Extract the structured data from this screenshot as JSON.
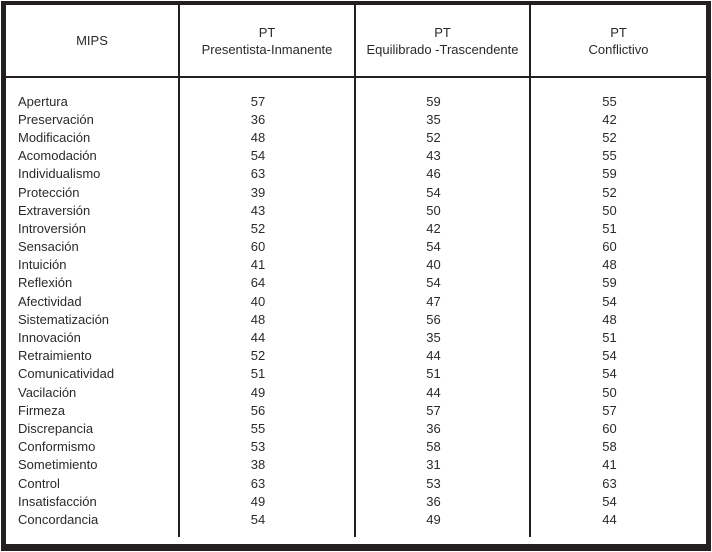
{
  "colors": {
    "border": "#231f20",
    "text": "#2a2a2a",
    "background": "#ffffff"
  },
  "table": {
    "columns": [
      {
        "title": "MIPS",
        "subtitle": ""
      },
      {
        "title": "PT",
        "subtitle": "Presentista-Inmanente"
      },
      {
        "title": "PT",
        "subtitle": "Equilibrado -Trascendente"
      },
      {
        "title": "PT",
        "subtitle": "Conflictivo"
      }
    ],
    "rows": [
      {
        "label": "Apertura",
        "values": [
          57,
          59,
          55
        ]
      },
      {
        "label": "Preservación",
        "values": [
          36,
          35,
          42
        ]
      },
      {
        "label": "Modificación",
        "values": [
          48,
          52,
          52
        ]
      },
      {
        "label": "Acomodación",
        "values": [
          54,
          43,
          55
        ]
      },
      {
        "label": "Individualismo",
        "values": [
          63,
          46,
          59
        ]
      },
      {
        "label": "Protección",
        "values": [
          39,
          54,
          52
        ]
      },
      {
        "label": "Extraversión",
        "values": [
          43,
          50,
          50
        ]
      },
      {
        "label": "Introversión",
        "values": [
          52,
          42,
          51
        ]
      },
      {
        "label": "Sensación",
        "values": [
          60,
          54,
          60
        ]
      },
      {
        "label": "Intuición",
        "values": [
          41,
          40,
          48
        ]
      },
      {
        "label": "Reflexión",
        "values": [
          64,
          54,
          59
        ]
      },
      {
        "label": "Afectividad",
        "values": [
          40,
          47,
          54
        ]
      },
      {
        "label": "Sistematización",
        "values": [
          48,
          56,
          48
        ]
      },
      {
        "label": "Innovación",
        "values": [
          44,
          35,
          51
        ]
      },
      {
        "label": "Retraimiento",
        "values": [
          52,
          44,
          54
        ]
      },
      {
        "label": "Comunicatividad",
        "values": [
          51,
          51,
          54
        ]
      },
      {
        "label": "Vacilación",
        "values": [
          49,
          44,
          50
        ]
      },
      {
        "label": "Firmeza",
        "values": [
          56,
          57,
          57
        ]
      },
      {
        "label": "Discrepancia",
        "values": [
          55,
          36,
          60
        ]
      },
      {
        "label": "Conformismo",
        "values": [
          53,
          58,
          58
        ]
      },
      {
        "label": "Sometimiento",
        "values": [
          38,
          31,
          41
        ]
      },
      {
        "label": "Control",
        "values": [
          63,
          53,
          63
        ]
      },
      {
        "label": "Insatisfacción",
        "values": [
          49,
          36,
          54
        ]
      },
      {
        "label": "Concordancia",
        "values": [
          54,
          49,
          44
        ]
      }
    ]
  }
}
